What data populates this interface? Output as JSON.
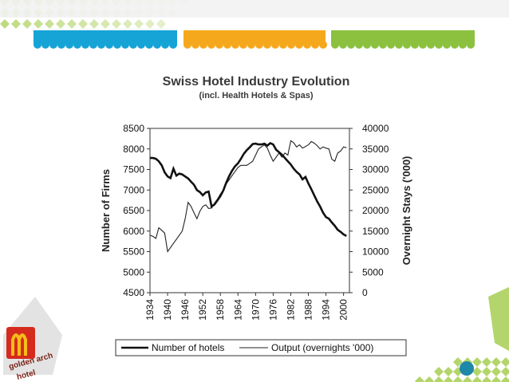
{
  "colors": {
    "blue_band": "#16a4d6",
    "orange_band": "#f6a81c",
    "green_band": "#8cc13f",
    "pattern_green": "#b3d56b",
    "teal_dot": "#1f87a8",
    "logo_red": "#d52b1e",
    "logo_gold": "#f6bd18",
    "logo_brown": "#7a1f14"
  },
  "logo": {
    "line1": "golden arch",
    "line2": "hotel"
  },
  "chart_data": {
    "type": "line",
    "title": "Swiss Hotel Industry Evolution",
    "subtitle": "(incl. Health Hotels & Spas)",
    "x_ticks": [
      1934,
      1940,
      1946,
      1952,
      1958,
      1964,
      1970,
      1976,
      1982,
      1988,
      1994,
      2000
    ],
    "xlim": [
      1934,
      2002
    ],
    "y_left": {
      "label": "Number of Firms",
      "range": [
        4500,
        8500
      ],
      "ticks": [
        4500,
        5000,
        5500,
        6000,
        6500,
        7000,
        7500,
        8000,
        8500
      ]
    },
    "y_right": {
      "label": "Overnight Stays ('000)",
      "range": [
        0,
        40000
      ],
      "ticks": [
        0,
        5000,
        10000,
        15000,
        20000,
        25000,
        30000,
        35000,
        40000
      ]
    },
    "legend_position": "bottom",
    "grid": false,
    "series": [
      {
        "name": "Number of hotels",
        "axis": "left",
        "style": "thick",
        "x": [
          1934,
          1935,
          1936,
          1937,
          1938,
          1939,
          1940,
          1941,
          1942,
          1943,
          1944,
          1945,
          1946,
          1947,
          1948,
          1949,
          1950,
          1951,
          1952,
          1953,
          1954,
          1955,
          1956,
          1957,
          1958,
          1959,
          1960,
          1961,
          1962,
          1963,
          1964,
          1965,
          1966,
          1967,
          1968,
          1969,
          1970,
          1971,
          1972,
          1973,
          1974,
          1975,
          1976,
          1977,
          1978,
          1979,
          1980,
          1981,
          1982,
          1983,
          1984,
          1985,
          1986,
          1987,
          1988,
          1989,
          1990,
          1991,
          1992,
          1993,
          1994,
          1995,
          1996,
          1997,
          1998,
          1999,
          2000,
          2001
        ],
        "values": [
          7780,
          7780,
          7760,
          7700,
          7600,
          7430,
          7330,
          7290,
          7520,
          7350,
          7400,
          7380,
          7330,
          7280,
          7200,
          7130,
          7000,
          6950,
          6870,
          6940,
          6960,
          6600,
          6650,
          6750,
          6850,
          6990,
          7180,
          7340,
          7470,
          7580,
          7650,
          7760,
          7880,
          7970,
          8040,
          8120,
          8130,
          8110,
          8110,
          8130,
          8080,
          8140,
          8110,
          7980,
          7920,
          7860,
          7780,
          7700,
          7620,
          7520,
          7440,
          7380,
          7260,
          7320,
          7160,
          7020,
          6870,
          6720,
          6600,
          6450,
          6340,
          6300,
          6210,
          6130,
          6030,
          5980,
          5920,
          5880
        ]
      },
      {
        "name": "Output (overnights '000)",
        "axis": "right",
        "style": "thin",
        "x": [
          1934,
          1935,
          1936,
          1937,
          1938,
          1939,
          1940,
          1941,
          1942,
          1943,
          1944,
          1945,
          1946,
          1947,
          1948,
          1949,
          1950,
          1951,
          1952,
          1953,
          1954,
          1955,
          1956,
          1957,
          1958,
          1959,
          1960,
          1961,
          1962,
          1963,
          1964,
          1965,
          1966,
          1967,
          1968,
          1969,
          1970,
          1971,
          1972,
          1973,
          1974,
          1975,
          1976,
          1977,
          1978,
          1979,
          1980,
          1981,
          1982,
          1983,
          1984,
          1985,
          1986,
          1987,
          1988,
          1989,
          1990,
          1991,
          1992,
          1993,
          1994,
          1995,
          1996,
          1997,
          1998,
          1999,
          2000,
          2001
        ],
        "values": [
          14000,
          13700,
          13200,
          15800,
          15200,
          14500,
          10000,
          11000,
          12000,
          13000,
          14000,
          15000,
          18000,
          22000,
          21000,
          19500,
          18000,
          19800,
          21000,
          21400,
          20500,
          20600,
          21800,
          22800,
          24000,
          25000,
          26500,
          27500,
          28500,
          29500,
          30500,
          31000,
          31000,
          31000,
          31500,
          32000,
          33500,
          35000,
          35500,
          36000,
          35200,
          33500,
          32000,
          33000,
          34000,
          33000,
          34000,
          33500,
          37000,
          36500,
          35500,
          36000,
          35200,
          35600,
          36000,
          36800,
          36400,
          35800,
          35000,
          35500,
          35200,
          35000,
          32500,
          32000,
          34000,
          34500,
          35500,
          35300
        ]
      }
    ]
  }
}
